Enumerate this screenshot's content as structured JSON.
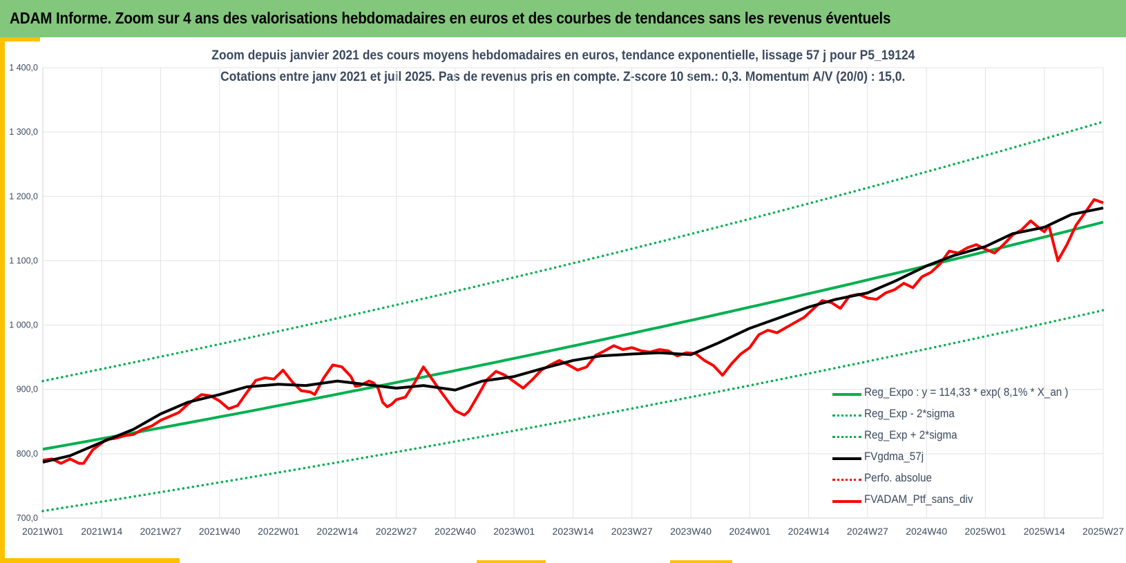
{
  "header": {
    "title": "ADAM Informe. Zoom sur 4 ans des valorisations hebdomadaires en euros et des courbes de tendances sans les revenus éventuels"
  },
  "chart_data": {
    "type": "line",
    "title": "Zoom depuis janvier 2021 des cours moyens hebdomadaires  en euros, tendance exponentielle, lissage 57 j pour P5_19124",
    "subtitle": "Cotations entre janv 2021 et juil 2025. Pas de revenus pris en compte. Z-score 10 sem.: 0,3. Momentum A/V (20/0) : 15,0.",
    "xlabel": "",
    "ylabel": "",
    "ylim": [
      700,
      1400
    ],
    "yticks": [
      700,
      800,
      900,
      1000,
      1100,
      1200,
      1300,
      1400
    ],
    "ytick_labels": [
      "700,0",
      "800,0",
      "900,0",
      "1 000,0",
      "1 100,0",
      "1 200,0",
      "1 300,0",
      "1 400,0"
    ],
    "xlim": [
      0,
      234
    ],
    "xticks": [
      0,
      13,
      26,
      39,
      52,
      65,
      78,
      91,
      104,
      117,
      130,
      143,
      156,
      169,
      182,
      195,
      208,
      221,
      234
    ],
    "xtick_labels": [
      "2021W01",
      "2021W14",
      "2021W27",
      "2021W40",
      "2022W01",
      "2022W14",
      "2022W27",
      "2022W40",
      "2023W01",
      "2023W14",
      "2023W27",
      "2023W40",
      "2024W01",
      "2024W14",
      "2024W27",
      "2024W40",
      "2025W01",
      "2025W14",
      "2025W27"
    ],
    "grid": true,
    "legend_position": "bottom-right",
    "series": [
      {
        "name": "Reg_Expo : y = 114,33 * exp( 8,1% *  X_an )",
        "color": "#00b050",
        "style": "solid",
        "x": [
          0,
          234
        ],
        "y": [
          807,
          1160
        ]
      },
      {
        "name": "Reg_Exp - 2*sigma",
        "color": "#00b050",
        "style": "dotted",
        "x": [
          0,
          234
        ],
        "y": [
          711,
          1023
        ]
      },
      {
        "name": "Reg_Exp + 2*sigma",
        "color": "#00b050",
        "style": "dotted",
        "x": [
          0,
          234
        ],
        "y": [
          913,
          1316
        ]
      },
      {
        "name": "FVgdma_57j",
        "color": "#000000",
        "style": "solid",
        "x": [
          0,
          6,
          13,
          20,
          26,
          32,
          39,
          45,
          52,
          58,
          65,
          71,
          78,
          84,
          91,
          97,
          104,
          110,
          117,
          123,
          130,
          136,
          143,
          149,
          156,
          162,
          169,
          175,
          182,
          188,
          195,
          201,
          208,
          214,
          221,
          227,
          234
        ],
        "y": [
          787,
          797,
          818,
          838,
          862,
          880,
          892,
          904,
          908,
          906,
          913,
          908,
          902,
          906,
          899,
          913,
          920,
          932,
          945,
          952,
          955,
          957,
          954,
          972,
          995,
          1010,
          1028,
          1040,
          1050,
          1068,
          1092,
          1108,
          1122,
          1142,
          1152,
          1172,
          1182
        ]
      },
      {
        "name": "Perfo. absolue",
        "color": "#ff0000",
        "style": "dotted",
        "x": [],
        "y": []
      },
      {
        "name": "FVADAM_Ptf_sans_div",
        "color": "#ff0000",
        "style": "solid",
        "x": [
          0,
          2,
          4,
          6,
          8,
          9,
          11,
          14,
          16,
          18,
          20,
          22,
          24,
          26,
          28,
          30,
          32,
          35,
          37,
          39,
          41,
          43,
          45,
          47,
          49,
          51,
          53,
          55,
          57,
          59,
          60,
          62,
          64,
          66,
          68,
          69,
          70,
          72,
          73,
          74,
          75,
          76,
          77,
          78,
          80,
          82,
          84,
          86,
          88,
          90,
          91,
          93,
          94,
          96,
          98,
          100,
          102,
          104,
          106,
          108,
          110,
          112,
          114,
          116,
          118,
          120,
          122,
          124,
          126,
          128,
          130,
          132,
          134,
          136,
          138,
          140,
          142,
          144,
          146,
          148,
          150,
          152,
          154,
          156,
          158,
          160,
          162,
          164,
          166,
          168,
          170,
          172,
          174,
          176,
          178,
          180,
          182,
          184,
          186,
          188,
          190,
          192,
          194,
          196,
          198,
          200,
          202,
          204,
          206,
          208,
          210,
          212,
          214,
          216,
          218,
          220,
          221,
          222,
          224,
          226,
          228,
          230,
          232,
          234
        ],
        "y": [
          790,
          792,
          785,
          792,
          785,
          785,
          806,
          822,
          824,
          828,
          830,
          838,
          843,
          852,
          858,
          864,
          877,
          892,
          890,
          882,
          870,
          875,
          895,
          914,
          918,
          916,
          930,
          912,
          898,
          896,
          892,
          918,
          938,
          935,
          920,
          905,
          906,
          913,
          910,
          902,
          880,
          873,
          877,
          884,
          888,
          910,
          935,
          915,
          895,
          876,
          867,
          860,
          866,
          890,
          915,
          928,
          922,
          912,
          902,
          915,
          930,
          938,
          945,
          938,
          930,
          935,
          953,
          960,
          968,
          962,
          965,
          960,
          958,
          962,
          960,
          952,
          957,
          956,
          945,
          937,
          922,
          940,
          955,
          965,
          985,
          992,
          988,
          996,
          1004,
          1012,
          1025,
          1038,
          1035,
          1026,
          1045,
          1048,
          1042,
          1040,
          1050,
          1055,
          1065,
          1058,
          1075,
          1082,
          1095,
          1115,
          1112,
          1120,
          1125,
          1118,
          1112,
          1125,
          1140,
          1148,
          1162,
          1150,
          1145,
          1155,
          1100,
          1125,
          1155,
          1175,
          1195,
          1190
        ]
      }
    ]
  }
}
